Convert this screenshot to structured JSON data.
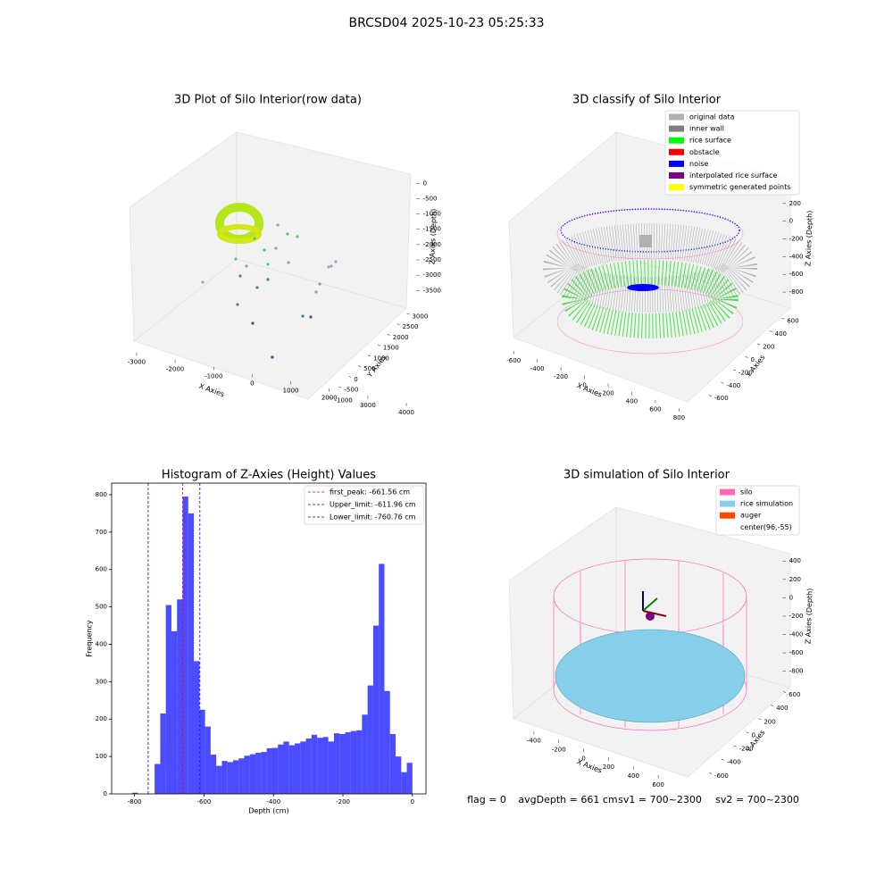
{
  "suptitle": "BRCSD04 2025-10-23 05:25:33",
  "chart_data": [
    {
      "type": "scatter3d",
      "title": "3D Plot of Silo Interior(row data)",
      "xlabel": "X Axies",
      "ylabel": "Y Axies",
      "zlabel": "Z Axies (Depth)",
      "xlim": [
        -3300,
        4300
      ],
      "ylim": [
        -1300,
        3300
      ],
      "zlim": [
        -3900,
        300
      ],
      "xticks": [
        -3000,
        -2000,
        -1000,
        0,
        1000,
        2000,
        3000,
        4000
      ],
      "yticks": [
        -1000,
        -500,
        0,
        500,
        1000,
        1500,
        2000,
        2500,
        3000
      ],
      "zticks": [
        0,
        -500,
        -1000,
        -1500,
        -2000,
        -2500,
        -3000,
        -3500
      ]
    },
    {
      "type": "scatter3d",
      "title": "3D classify of Silo Interior",
      "xlabel": "X Axies",
      "ylabel": "Y Axies",
      "zlabel": "Z Axies (Depth)",
      "xlim": [
        -700,
        850
      ],
      "ylim": [
        -700,
        700
      ],
      "zlim": [
        -900,
        450
      ],
      "xticks": [
        -600,
        -400,
        -200,
        0,
        200,
        400,
        600,
        800
      ],
      "yticks": [
        -600,
        -400,
        -200,
        0,
        200,
        400,
        600
      ],
      "zticks": [
        -800,
        -600,
        -400,
        -200,
        0,
        200
      ],
      "legend": [
        {
          "name": "original data",
          "color": "#b0b0b0"
        },
        {
          "name": "inner wall",
          "color": "#808080"
        },
        {
          "name": "rice surface",
          "color": "#00ff00"
        },
        {
          "name": "obstacle",
          "color": "#ff0000"
        },
        {
          "name": "noise",
          "color": "#0000ff"
        },
        {
          "name": "interpolated rice surface",
          "color": "#800080"
        },
        {
          "name": "symmetric generated points",
          "color": "#ffff00"
        }
      ]
    },
    {
      "type": "histogram",
      "title": "Histogram of Z-Axies (Height) Values",
      "xlabel": "Depth (cm)",
      "ylabel": "Frequency",
      "color": "#0000ff",
      "bins": [
        -806.8,
        -790.66,
        -774.53,
        -758.39,
        -742.26,
        -726.12,
        -709.98,
        -693.85,
        -677.71,
        -661.58,
        -645.44,
        -629.3,
        -613.17,
        -597.03,
        -580.9,
        -564.76,
        -548.62,
        -532.49,
        -516.35,
        -500.22,
        -484.08,
        -467.94,
        -451.81,
        -435.67,
        -419.54,
        -403.4,
        -387.26,
        -371.13,
        -354.99,
        -338.86,
        -322.72,
        -306.58,
        -290.45,
        -274.31,
        -258.18,
        -242.04,
        -225.9,
        -209.77,
        -193.63,
        -177.5,
        -161.36,
        -145.22,
        -129.09,
        -112.95,
        -96.82,
        -80.68,
        -64.54,
        -48.41,
        -32.27,
        -16.14,
        0
      ],
      "values": [
        3,
        0,
        0,
        0,
        80,
        215,
        505,
        435,
        520,
        795,
        750,
        355,
        225,
        180,
        105,
        75,
        88,
        85,
        90,
        95,
        102,
        106,
        110,
        112,
        122,
        123,
        132,
        140,
        130,
        135,
        140,
        148,
        158,
        150,
        152,
        140,
        162,
        160,
        165,
        168,
        170,
        212,
        290,
        450,
        615,
        275,
        160,
        100,
        58,
        83
      ],
      "xlim": [
        -866,
        39
      ],
      "ylim": [
        0,
        831
      ],
      "xticks": [
        -800,
        -600,
        -400,
        -200,
        0
      ],
      "yticks": [
        0,
        100,
        200,
        300,
        400,
        500,
        600,
        700,
        800
      ],
      "vlines": [
        {
          "name": "first_peak: -661.56 cm",
          "value": -661.56,
          "color": "#ff0000"
        },
        {
          "name": "Upper_limit: -611.96 cm",
          "value": -611.96,
          "color": "#0000ff"
        },
        {
          "name": "Lower_limit: -760.76 cm",
          "value": -760.76,
          "color": "#0000ff"
        }
      ]
    },
    {
      "type": "surface3d",
      "title": "3D simulation of Silo Interior",
      "xlabel": "X Axies",
      "ylabel": "Y Axies",
      "zlabel": "Z Axies (Depth)",
      "xlim": [
        -550,
        750
      ],
      "ylim": [
        -700,
        700
      ],
      "zlim": [
        -900,
        480
      ],
      "xticks": [
        -400,
        -200,
        0,
        200,
        400,
        600
      ],
      "yticks": [
        -600,
        -400,
        -200,
        0,
        200,
        400,
        600
      ],
      "zticks": [
        -800,
        -600,
        -400,
        -200,
        0,
        200,
        400
      ],
      "legend": [
        {
          "name": "silo",
          "color": "#ff69b4"
        },
        {
          "name": "rice simulation",
          "color": "#87ceeb"
        },
        {
          "name": "auger",
          "color": "#ff4500"
        },
        {
          "name": "center(96,-55)",
          "color": "#ffffff"
        }
      ]
    }
  ],
  "footer": [
    "flag = 0",
    "avgDepth = 661 cm",
    "sv1 = 700~2300",
    "sv2 = 700~2300"
  ]
}
